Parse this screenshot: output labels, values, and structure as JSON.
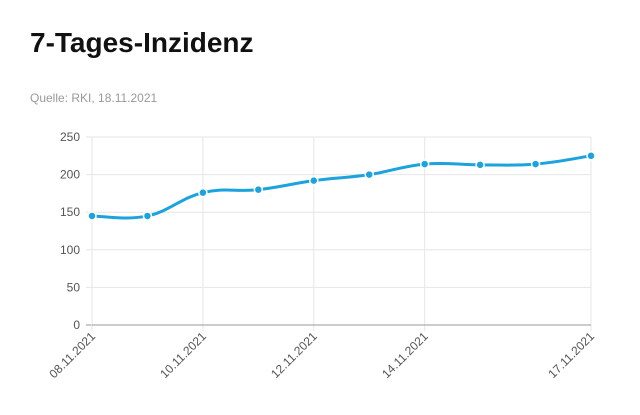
{
  "chart_data": {
    "type": "line",
    "title": "7-Tages-Inzidenz",
    "subtitle": "Quelle: RKI, 18.11.2021",
    "categories": [
      "08.11.2021",
      null,
      "10.11.2021",
      null,
      "12.11.2021",
      null,
      "14.11.2021",
      null,
      null,
      "17.11.2021"
    ],
    "series": [
      {
        "name": "7-Tages-Inzidenz",
        "color": "#1ca3de",
        "values": [
          145,
          145,
          176,
          180,
          192,
          200,
          214,
          213,
          214,
          225
        ]
      }
    ],
    "ylim": [
      0,
      250
    ],
    "yticks": [
      0,
      50,
      100,
      150,
      200,
      250
    ],
    "grid": true
  }
}
